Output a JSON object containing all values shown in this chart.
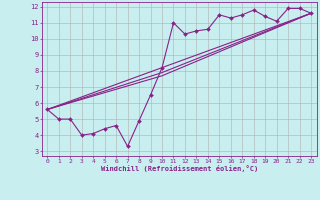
{
  "xlabel": "Windchill (Refroidissement éolien,°C)",
  "xlim": [
    -0.5,
    23.5
  ],
  "ylim": [
    2.7,
    12.3
  ],
  "xticks": [
    0,
    1,
    2,
    3,
    4,
    5,
    6,
    7,
    8,
    9,
    10,
    11,
    12,
    13,
    14,
    15,
    16,
    17,
    18,
    19,
    20,
    21,
    22,
    23
  ],
  "yticks": [
    3,
    4,
    5,
    6,
    7,
    8,
    9,
    10,
    11,
    12
  ],
  "background_color": "#c8eef0",
  "grid_color": "#b0b0b0",
  "line_color": "#882288",
  "line1_x": [
    0,
    1,
    2,
    3,
    4,
    5,
    6,
    7,
    8,
    9,
    10,
    11,
    12,
    13,
    14,
    15,
    16,
    17,
    18,
    19,
    20,
    21,
    22,
    23
  ],
  "line1_y": [
    5.6,
    5.0,
    5.0,
    4.0,
    4.1,
    4.4,
    4.6,
    3.3,
    4.9,
    6.5,
    8.2,
    11.0,
    10.3,
    10.5,
    10.6,
    11.5,
    11.3,
    11.5,
    11.8,
    11.4,
    11.1,
    11.9,
    11.9,
    11.6
  ],
  "line2_x": [
    0,
    23
  ],
  "line2_y": [
    5.6,
    11.6
  ],
  "line3_x": [
    0,
    10,
    23
  ],
  "line3_y": [
    5.6,
    7.7,
    11.6
  ],
  "line4_x": [
    0,
    10,
    23
  ],
  "line4_y": [
    5.6,
    7.9,
    11.6
  ]
}
